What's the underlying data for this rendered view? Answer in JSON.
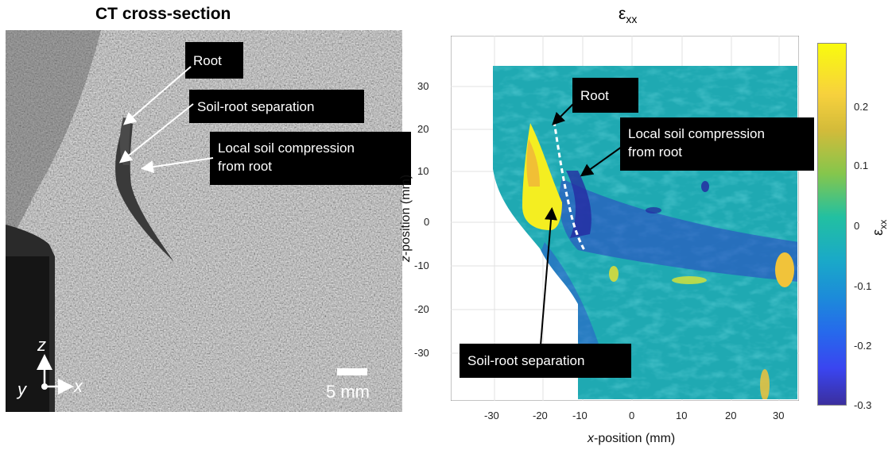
{
  "left_panel": {
    "title": "CT cross-section",
    "annotations": {
      "root": "Root",
      "separation": "Soil-root separation",
      "compression_line1": "Local soil compression",
      "compression_line2": "from root"
    },
    "axes_glyph": {
      "z": "z",
      "x": "x",
      "y": "y"
    },
    "scale_bar": "5 mm"
  },
  "right_panel": {
    "title_main": "ε",
    "title_sub": "xx",
    "annotations": {
      "root": "Root",
      "compression_line1": "Local soil compression",
      "compression_line2": "from root",
      "separation": "Soil-root separation"
    },
    "xlabel_var": "x",
    "xlabel_rest": "-position (mm)",
    "ylabel_var": "z",
    "ylabel_rest": "-position (mm)",
    "x_ticks": [
      "-30",
      "-20",
      "-10",
      "0",
      "10",
      "20",
      "30"
    ],
    "y_ticks": [
      "30",
      "20",
      "10",
      "0",
      "-10",
      "-20",
      "-30"
    ],
    "colorbar_label": "ε",
    "colorbar_label_sub": "xx",
    "colorbar_ticks": [
      "0.2",
      "0.1",
      "0",
      "-0.1",
      "-0.2",
      "-0.3"
    ]
  },
  "chart_data": {
    "type": "heatmap",
    "title": "εxx",
    "xlabel": "x-position (mm)",
    "ylabel": "z-position (mm)",
    "xlim": [
      -39,
      35
    ],
    "ylim": [
      -40,
      39
    ],
    "y_axis_direction": "descending",
    "colorbar": {
      "label": "εxx",
      "range": [
        -0.3,
        0.3
      ],
      "colormap": "parula"
    },
    "grid": true
  },
  "colors": {
    "field_base": "#1fa9b2",
    "high_strain": "#f4ee21",
    "low_strain": "#2d2fb0",
    "callout_bg": "#000000"
  }
}
